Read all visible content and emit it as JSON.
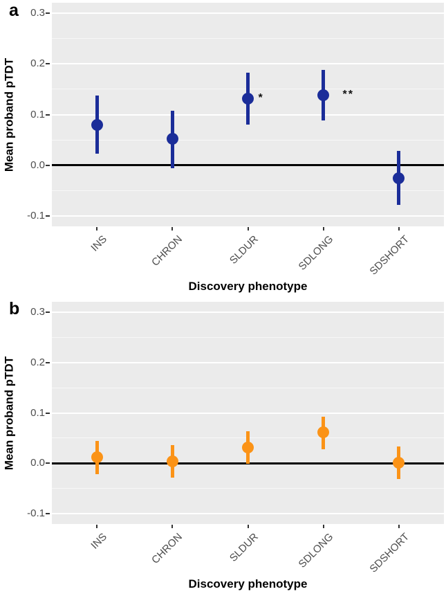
{
  "figure": {
    "panel_background": "#ebebeb",
    "page_background": "#ffffff",
    "grid_major_color": "#ffffff",
    "axis_text_color": "#4d4d4d",
    "axis_title_color": "#000000",
    "reference_line_color": "#000000"
  },
  "chart_data": [
    {
      "type": "scatter",
      "panel_label": "a",
      "series_name": "proband pTDT (panel a)",
      "color": "#1b2d99",
      "xlabel": "Discovery phenotype",
      "ylabel": "Mean proband pTDT",
      "categories": [
        "INS",
        "CHRON",
        "SLDUR",
        "SDLONG",
        "SDSHORT"
      ],
      "points": [
        {
          "category": "INS",
          "mean": 0.08,
          "ci_low": 0.023,
          "ci_high": 0.138,
          "sig": ""
        },
        {
          "category": "CHRON",
          "mean": 0.052,
          "ci_low": -0.005,
          "ci_high": 0.108,
          "sig": ""
        },
        {
          "category": "SLDUR",
          "mean": 0.131,
          "ci_low": 0.08,
          "ci_high": 0.182,
          "sig": "*"
        },
        {
          "category": "SDLONG",
          "mean": 0.138,
          "ci_low": 0.088,
          "ci_high": 0.188,
          "sig": "**"
        },
        {
          "category": "SDSHORT",
          "mean": -0.026,
          "ci_low": -0.078,
          "ci_high": 0.028,
          "sig": ""
        }
      ],
      "y_ticks": [
        -0.1,
        0.0,
        0.1,
        0.2,
        0.3
      ],
      "y_tick_labels": [
        "-0.1",
        "0.0",
        "0.1",
        "0.2",
        "0.3"
      ],
      "ylim": [
        -0.12,
        0.32
      ],
      "reference_line_y": 0.0,
      "grid": true,
      "legend": "none"
    },
    {
      "type": "scatter",
      "panel_label": "b",
      "series_name": "proband pTDT (panel b)",
      "color": "#fb9317",
      "xlabel": "Discovery phenotype",
      "ylabel": "Mean proband pTDT",
      "categories": [
        "INS",
        "CHRON",
        "SLDUR",
        "SDLONG",
        "SDSHORT"
      ],
      "points": [
        {
          "category": "INS",
          "mean": 0.012,
          "ci_low": -0.021,
          "ci_high": 0.044,
          "sig": ""
        },
        {
          "category": "CHRON",
          "mean": 0.004,
          "ci_low": -0.028,
          "ci_high": 0.036,
          "sig": ""
        },
        {
          "category": "SLDUR",
          "mean": 0.031,
          "ci_low": -0.001,
          "ci_high": 0.063,
          "sig": ""
        },
        {
          "category": "SDLONG",
          "mean": 0.061,
          "ci_low": 0.028,
          "ci_high": 0.093,
          "sig": ""
        },
        {
          "category": "SDSHORT",
          "mean": 0.001,
          "ci_low": -0.031,
          "ci_high": 0.034,
          "sig": ""
        }
      ],
      "y_ticks": [
        -0.1,
        0.0,
        0.1,
        0.2,
        0.3
      ],
      "y_tick_labels": [
        "-0.1",
        "0.0",
        "0.1",
        "0.2",
        "0.3"
      ],
      "ylim": [
        -0.12,
        0.32
      ],
      "reference_line_y": 0.0,
      "grid": true,
      "legend": "none"
    }
  ]
}
